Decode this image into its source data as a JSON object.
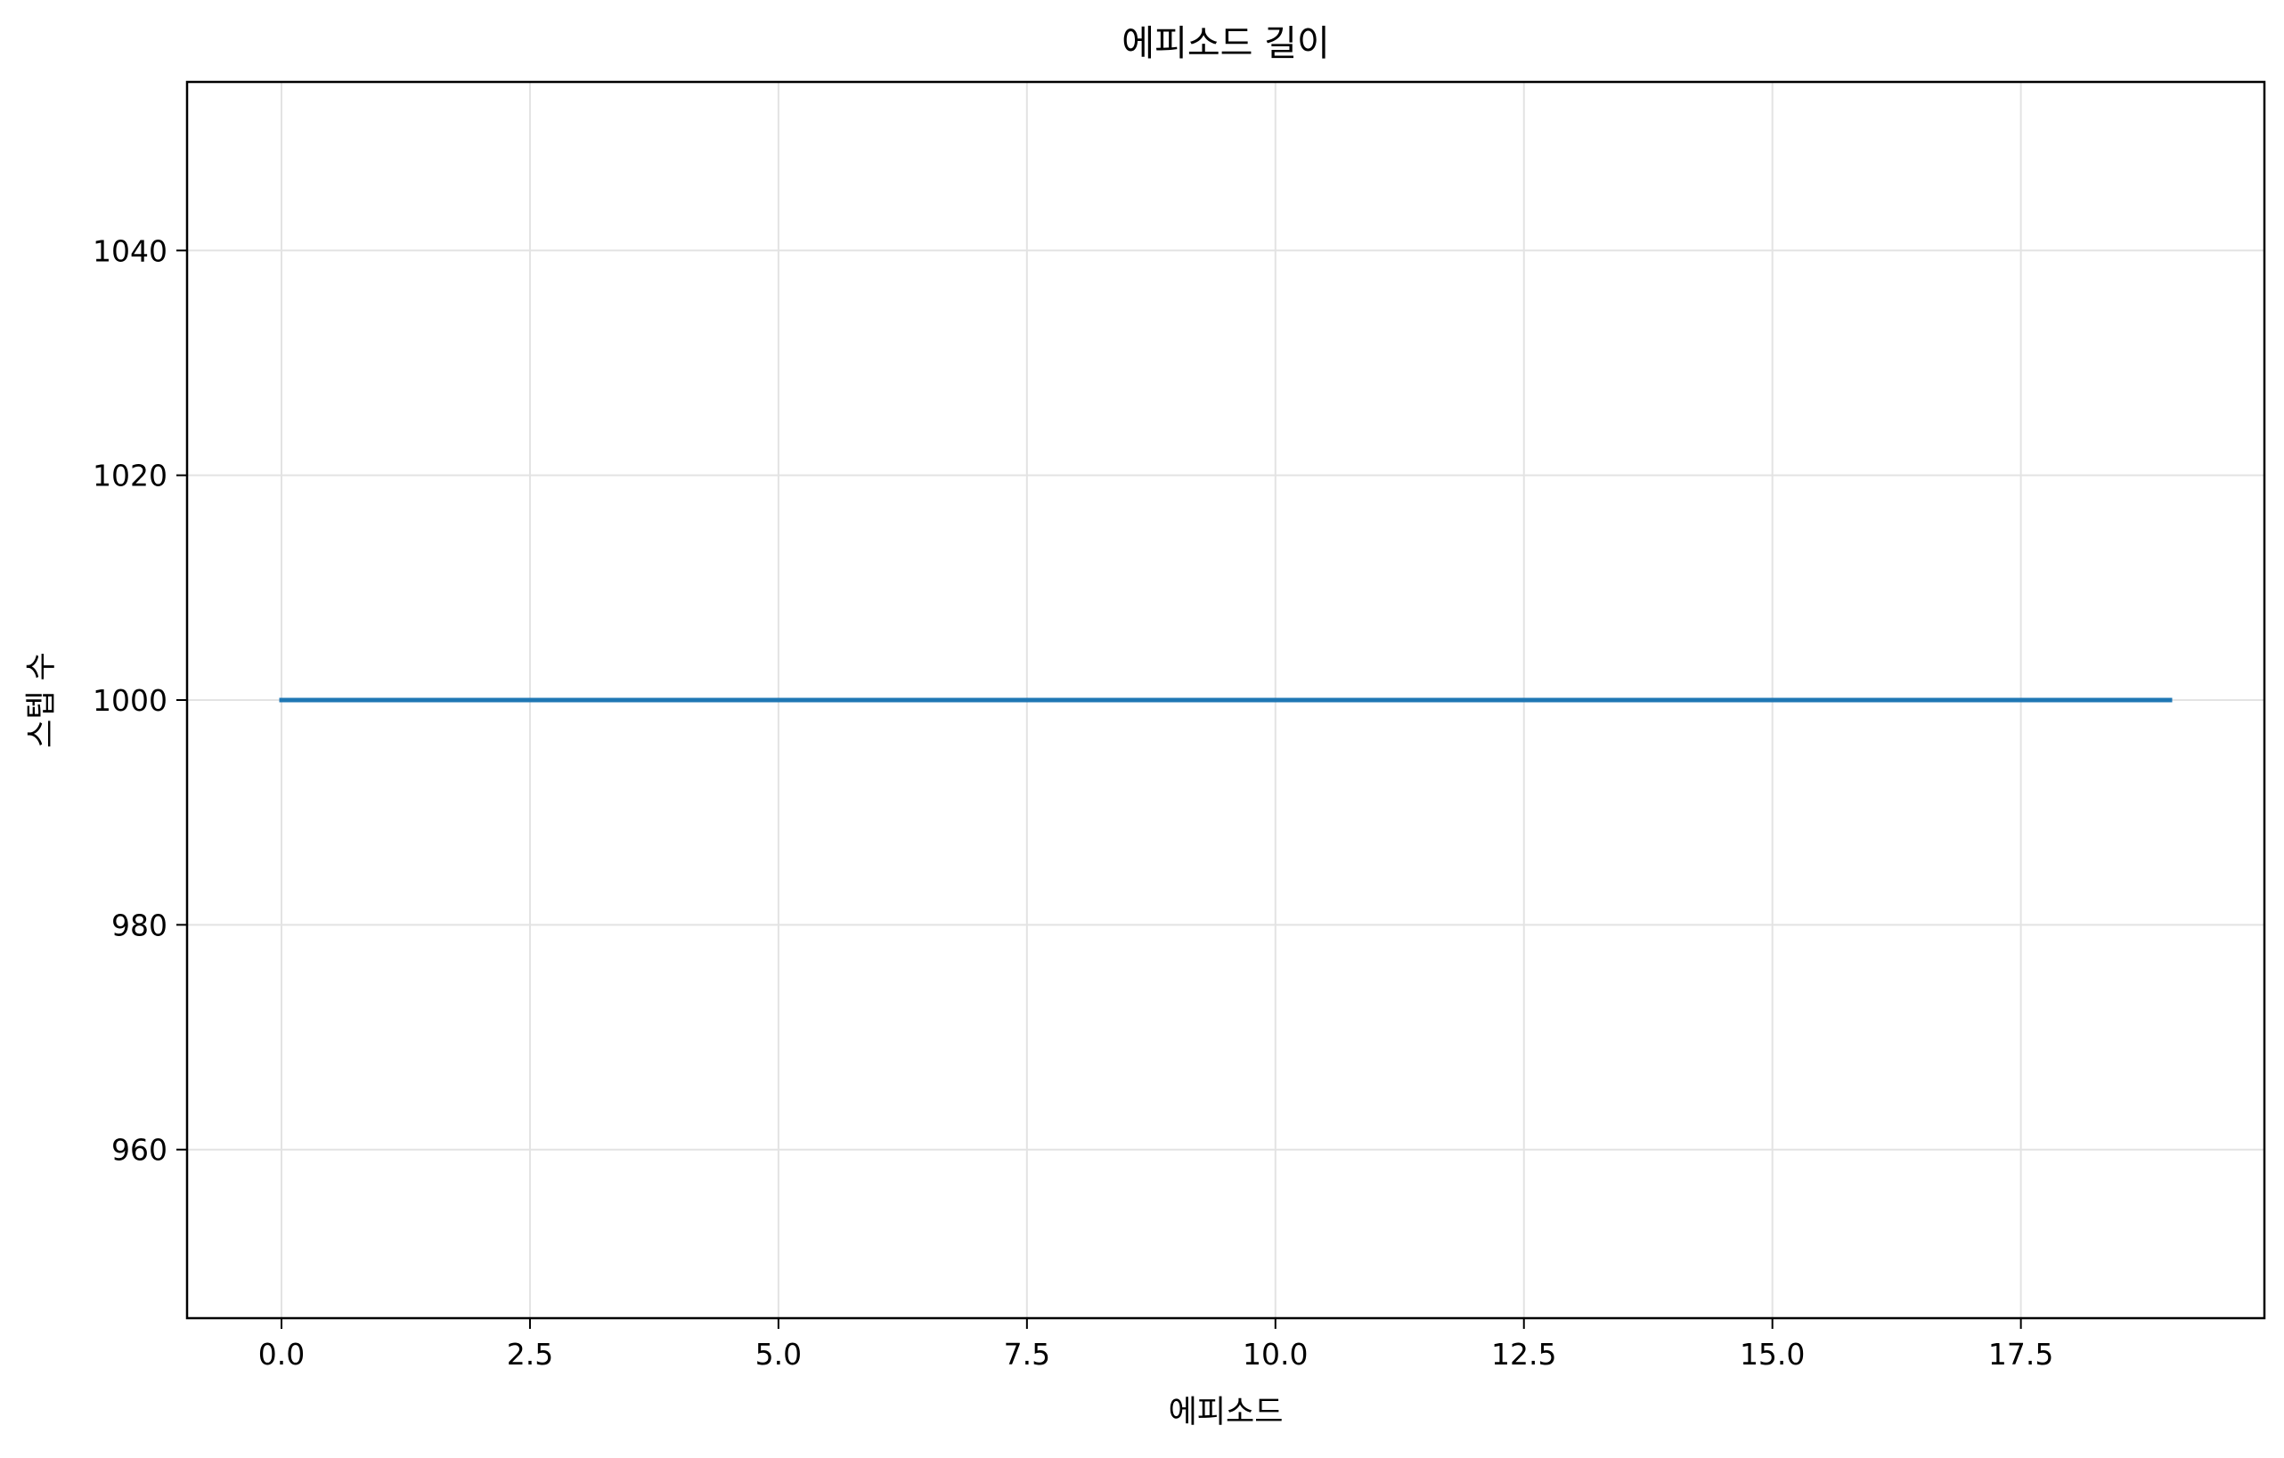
{
  "chart_data": {
    "type": "line",
    "title": "에피소드 길이",
    "xlabel": "에피소드",
    "ylabel": "스텝 수",
    "xlim": [
      -0.95,
      19.95
    ],
    "ylim": [
      945,
      1055
    ],
    "xticks": [
      0.0,
      2.5,
      5.0,
      7.5,
      10.0,
      12.5,
      15.0,
      17.5
    ],
    "xtick_labels": [
      "0.0",
      "2.5",
      "5.0",
      "7.5",
      "10.0",
      "12.5",
      "15.0",
      "17.5"
    ],
    "yticks": [
      960,
      980,
      1000,
      1020,
      1040
    ],
    "ytick_labels": [
      "960",
      "980",
      "1000",
      "1020",
      "1040"
    ],
    "grid": true,
    "series": [
      {
        "name": "episode_length",
        "color": "#1f77b4",
        "x": [
          0,
          1,
          2,
          3,
          4,
          5,
          6,
          7,
          8,
          9,
          10,
          11,
          12,
          13,
          14,
          15,
          16,
          17,
          18,
          19
        ],
        "values": [
          1000,
          1000,
          1000,
          1000,
          1000,
          1000,
          1000,
          1000,
          1000,
          1000,
          1000,
          1000,
          1000,
          1000,
          1000,
          1000,
          1000,
          1000,
          1000,
          1000
        ]
      }
    ],
    "colors": {
      "grid": "#e3e3e3",
      "spine": "#000000",
      "line": "#1f77b4"
    }
  }
}
